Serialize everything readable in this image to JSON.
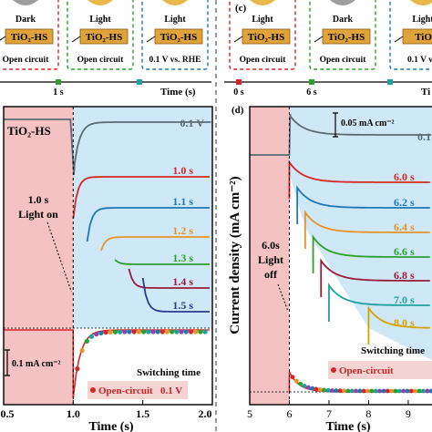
{
  "top_left": {
    "boxes": [
      {
        "lamp": "Dark",
        "device": "TiO₂-HS",
        "caption": "Open circuit",
        "border": "#d62728",
        "lamp_color": "#9e9e9e"
      },
      {
        "lamp": "Light",
        "device": "TiO₂-HS",
        "caption": "Open circuit",
        "border": "#2ca02c",
        "lamp_color": "#e8b84a"
      },
      {
        "lamp": "Light",
        "device": "TiO₂-HS",
        "caption": "0.1 V vs. RHE",
        "border": "#1f77b4",
        "lamp_color": "#e8b84a"
      }
    ],
    "timeline_tick": "1 s",
    "timeline_label": "Time (s)"
  },
  "top_right": {
    "panel_label": "(c)",
    "boxes": [
      {
        "lamp": "Light",
        "device": "TiO₂-HS",
        "caption": "Open circuit",
        "border": "#d62728",
        "lamp_color": "#e8b84a"
      },
      {
        "lamp": "Dark",
        "device": "TiO₂-HS",
        "caption": "Open circuit",
        "border": "#2ca02c",
        "lamp_color": "#9e9e9e"
      },
      {
        "lamp": "Light",
        "device": "TiO₂-",
        "caption": "0.1 V vs.",
        "border": "#1f77b4",
        "lamp_color": "#e8b84a"
      }
    ],
    "timeline_ticks": [
      "0 s",
      "6 s"
    ],
    "timeline_label": "Ti"
  },
  "colors": {
    "dark_region": "#f4c2c2",
    "light_region": "#cfe8f7",
    "v01": "#5a6b73",
    "s1": "#d62728",
    "s2": "#1f77b4",
    "s3": "#e8922a",
    "s4": "#2ca02c",
    "s5": "#9b1b3b",
    "s6": "#2b3a8f",
    "s7": "#1fa0a0",
    "s8": "#8e44ad",
    "s9": "#d6a000",
    "open_circuit": "#d62728",
    "applied_bias": "#1f77b4",
    "text_red": "#c62828",
    "axis": "#000000"
  },
  "chart_data": [
    {
      "type": "line",
      "xlabel": "Time (s)",
      "ylabel": "",
      "xlim": [
        0.5,
        2.0
      ],
      "xticks": [
        "0.5",
        "1.0",
        "1.5",
        "2.0"
      ],
      "sample_label": "TiO₂-HS",
      "annotation": "1.0 s\nLight on",
      "scale_bar": "0.1 mA cm⁻²",
      "switching_label": "Switching time",
      "legend": [
        "Open-circuit",
        "0.1 V"
      ],
      "series": [
        {
          "name": "0.1 V",
          "switch_time": 1.0
        },
        {
          "name": "1.0 s",
          "switch_time": 1.0
        },
        {
          "name": "1.1 s",
          "switch_time": 1.1
        },
        {
          "name": "1.2 s",
          "switch_time": 1.2
        },
        {
          "name": "1.3 s",
          "switch_time": 1.3
        },
        {
          "name": "1.4 s",
          "switch_time": 1.4
        },
        {
          "name": "1.5 s",
          "switch_time": 1.5
        }
      ]
    },
    {
      "type": "line",
      "panel_label": "(d)",
      "xlabel": "Time (s)",
      "ylabel": "Current density (mA cm⁻²)",
      "xlim": [
        5,
        9.6
      ],
      "xticks": [
        "5",
        "6",
        "7",
        "8",
        "9"
      ],
      "annotation": "6.0s\nLight\noff",
      "scale_bar": "0.05 mA cm⁻²",
      "switching_label": "Switching time",
      "legend": [
        "Open-circuit"
      ],
      "series": [
        {
          "name": "0.1",
          "switch_time": 6.0
        },
        {
          "name": "6.0 s",
          "switch_time": 6.0
        },
        {
          "name": "6.2 s",
          "switch_time": 6.2
        },
        {
          "name": "6.4 s",
          "switch_time": 6.4
        },
        {
          "name": "6.6 s",
          "switch_time": 6.6
        },
        {
          "name": "6.8 s",
          "switch_time": 6.8
        },
        {
          "name": "7.0 s",
          "switch_time": 7.0
        },
        {
          "name": "8.0 s",
          "switch_time": 8.0
        }
      ]
    }
  ]
}
